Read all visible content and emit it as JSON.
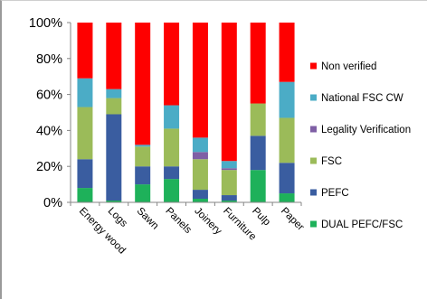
{
  "chart_data": {
    "type": "bar",
    "stacked": true,
    "categories": [
      "Energy wood",
      "Logs",
      "Sawn",
      "Panels",
      "Joinery",
      "Furniture",
      "Pulp",
      "Paper"
    ],
    "ylim": [
      0,
      100
    ],
    "yticks": [
      "0%",
      "20%",
      "40%",
      "60%",
      "80%",
      "100%"
    ],
    "ytick_values": [
      0,
      20,
      40,
      60,
      80,
      100
    ],
    "grid": false,
    "legend_position": "right",
    "series": [
      {
        "name": "DUAL PEFC/FSC",
        "color": "#1eb15a",
        "values": [
          8,
          1,
          10,
          13,
          2,
          1,
          18,
          5
        ]
      },
      {
        "name": "PEFC",
        "color": "#3a5da0",
        "values": [
          16,
          48,
          10,
          7,
          5,
          3,
          19,
          17
        ]
      },
      {
        "name": "FSC",
        "color": "#9bbb59",
        "values": [
          29,
          9,
          11,
          21,
          17,
          14,
          18,
          25
        ]
      },
      {
        "name": "Legality Verification",
        "color": "#7f5fa5",
        "values": [
          0,
          0,
          0,
          0,
          4,
          1,
          0,
          0
        ]
      },
      {
        "name": "National FSC CW",
        "color": "#4bacc6",
        "values": [
          16,
          5,
          1,
          13,
          8,
          4,
          0,
          20
        ]
      },
      {
        "name": "Non verified",
        "color": "#fe0000",
        "values": [
          31,
          37,
          68,
          46,
          64,
          77,
          45,
          33
        ]
      }
    ]
  }
}
